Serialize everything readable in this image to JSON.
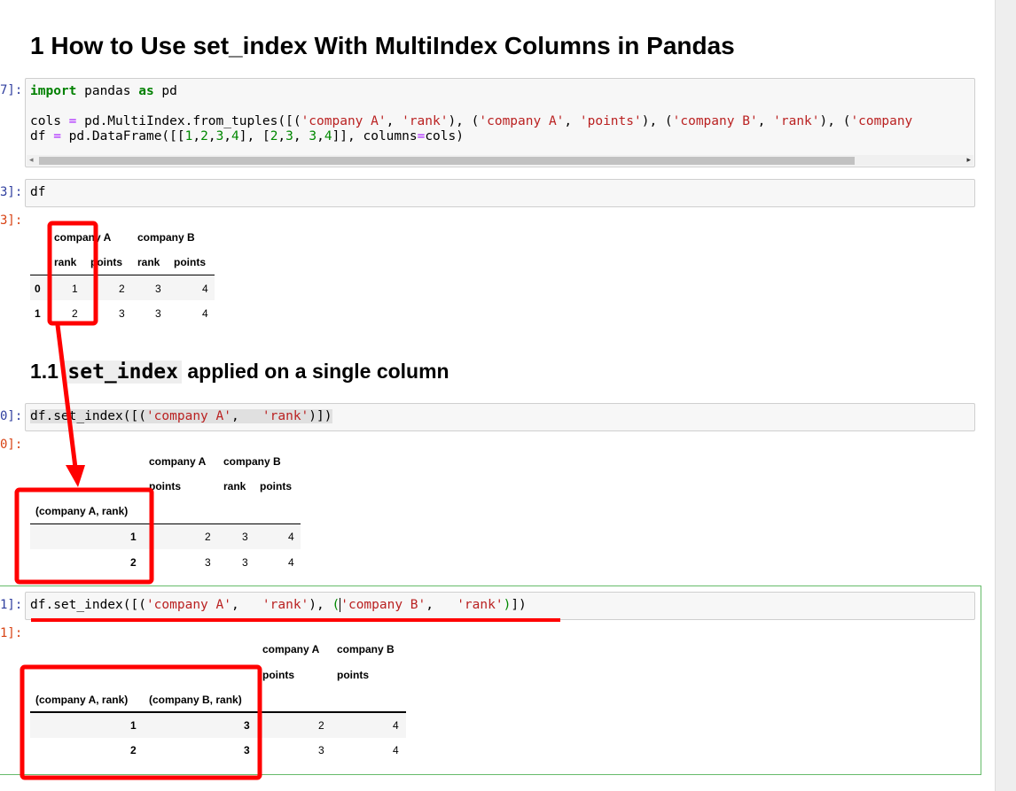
{
  "heading1": "1  How to Use set_index With MultiIndex Columns in Pandas",
  "heading2": {
    "prefix": "1.1",
    "code": "set_index",
    "suffix": "applied on a single column"
  },
  "prompts": {
    "c1_in": "7]:",
    "c2_in": "3]:",
    "c2_out": "3]:",
    "c3_in": "0]:",
    "c3_out": "0]:",
    "c4_in": "1]:",
    "c4_out": "1]:"
  },
  "cell1": {
    "lines": [
      [
        {
          "t": "import",
          "c": "k"
        },
        {
          "t": " pandas ",
          "c": "p"
        },
        {
          "t": "as",
          "c": "k"
        },
        {
          "t": " pd",
          "c": "p"
        }
      ],
      [],
      [
        {
          "t": "cols ",
          "c": "p"
        },
        {
          "t": "=",
          "c": "o"
        },
        {
          "t": " pd.MultiIndex.from_tuples([(",
          "c": "p"
        },
        {
          "t": "'company A'",
          "c": "s"
        },
        {
          "t": ", ",
          "c": "p"
        },
        {
          "t": "'rank'",
          "c": "s"
        },
        {
          "t": "), (",
          "c": "p"
        },
        {
          "t": "'company A'",
          "c": "s"
        },
        {
          "t": ", ",
          "c": "p"
        },
        {
          "t": "'points'",
          "c": "s"
        },
        {
          "t": "), (",
          "c": "p"
        },
        {
          "t": "'company B'",
          "c": "s"
        },
        {
          "t": ", ",
          "c": "p"
        },
        {
          "t": "'rank'",
          "c": "s"
        },
        {
          "t": "), (",
          "c": "p"
        },
        {
          "t": "'company",
          "c": "s"
        }
      ],
      [
        {
          "t": "df ",
          "c": "p"
        },
        {
          "t": "=",
          "c": "o"
        },
        {
          "t": " pd.DataFrame([[",
          "c": "p"
        },
        {
          "t": "1",
          "c": "n"
        },
        {
          "t": ",",
          "c": "p"
        },
        {
          "t": "2",
          "c": "n"
        },
        {
          "t": ",",
          "c": "p"
        },
        {
          "t": "3",
          "c": "n"
        },
        {
          "t": ",",
          "c": "p"
        },
        {
          "t": "4",
          "c": "n"
        },
        {
          "t": "], [",
          "c": "p"
        },
        {
          "t": "2",
          "c": "n"
        },
        {
          "t": ",",
          "c": "p"
        },
        {
          "t": "3",
          "c": "n"
        },
        {
          "t": ", ",
          "c": "p"
        },
        {
          "t": "3",
          "c": "n"
        },
        {
          "t": ",",
          "c": "p"
        },
        {
          "t": "4",
          "c": "n"
        },
        {
          "t": "]], columns",
          "c": "p"
        },
        {
          "t": "=",
          "c": "o"
        },
        {
          "t": "cols)",
          "c": "p"
        }
      ]
    ]
  },
  "cell2": {
    "lines": [
      [
        {
          "t": "df",
          "c": "p"
        }
      ]
    ]
  },
  "cell3": {
    "lines": [
      [
        {
          "t": "df.set_index([(",
          "c": "p hl"
        },
        {
          "t": "'company A'",
          "c": "s hl"
        },
        {
          "t": ",   ",
          "c": "p hl"
        },
        {
          "t": "'rank'",
          "c": "s hl"
        },
        {
          "t": ")])",
          "c": "p hl"
        }
      ]
    ]
  },
  "cell4": {
    "lines": [
      [
        {
          "t": "df.set_index([(",
          "c": "p"
        },
        {
          "t": "'company A'",
          "c": "s"
        },
        {
          "t": ",   ",
          "c": "p"
        },
        {
          "t": "'rank'",
          "c": "s"
        },
        {
          "t": "), ",
          "c": "p"
        },
        {
          "t": "(",
          "c": "n"
        },
        {
          "t": "|",
          "c": "cursor"
        },
        {
          "t": "'company B'",
          "c": "s"
        },
        {
          "t": ",   ",
          "c": "p"
        },
        {
          "t": "'rank'",
          "c": "s"
        },
        {
          "t": ")",
          "c": "n"
        },
        {
          "t": "])",
          "c": "p"
        }
      ]
    ]
  },
  "table1": {
    "top": [
      "company A",
      "company B"
    ],
    "sub": [
      "rank",
      "points",
      "rank",
      "points"
    ],
    "index": [
      "0",
      "1"
    ],
    "rows": [
      [
        "1",
        "2",
        "3",
        "4"
      ],
      [
        "2",
        "3",
        "3",
        "4"
      ]
    ]
  },
  "table2": {
    "top": [
      "company A",
      "company B"
    ],
    "sub": [
      "points",
      "rank",
      "points"
    ],
    "index_name": "(company A, rank)",
    "index": [
      "1",
      "2"
    ],
    "rows": [
      [
        "2",
        "3",
        "4"
      ],
      [
        "3",
        "3",
        "4"
      ]
    ]
  },
  "table3": {
    "top": [
      "company A",
      "company B"
    ],
    "sub": [
      "points",
      "points"
    ],
    "index_names": [
      "(company A, rank)",
      "(company B, rank)"
    ],
    "index": [
      [
        "1",
        "3"
      ],
      [
        "2",
        "3"
      ]
    ],
    "rows": [
      [
        "2",
        "4"
      ],
      [
        "3",
        "4"
      ]
    ]
  },
  "annotation_color": "#ff0000"
}
